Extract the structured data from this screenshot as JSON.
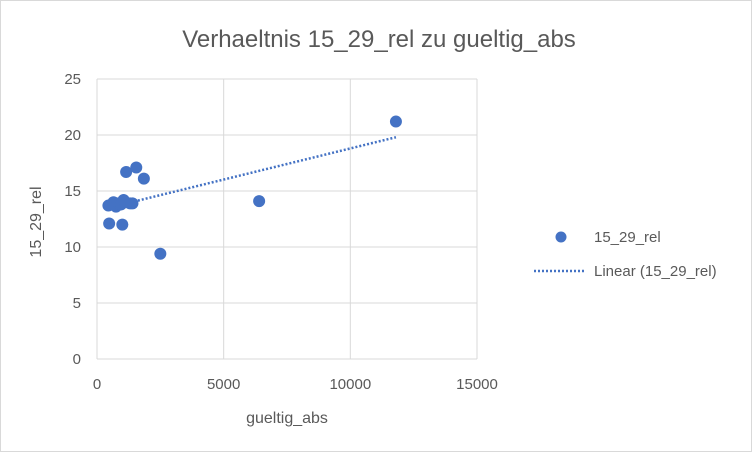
{
  "chart_data": {
    "type": "scatter",
    "title": "Verhaeltnis 15_29_rel zu gueltig_abs",
    "xlabel": "gueltig_abs",
    "ylabel": "15_29_rel",
    "xlim": [
      0,
      15000
    ],
    "ylim": [
      0,
      25
    ],
    "x_ticks": [
      "0",
      "5000",
      "10000",
      "15000"
    ],
    "y_ticks": [
      "0",
      "5",
      "10",
      "15",
      "20",
      "25"
    ],
    "grid": true,
    "legend_position": "right",
    "series": [
      {
        "name": "15_29_rel",
        "color": "#4472c4",
        "points": [
          {
            "x": 450,
            "y": 13.7
          },
          {
            "x": 480,
            "y": 12.1
          },
          {
            "x": 650,
            "y": 14.0
          },
          {
            "x": 750,
            "y": 13.6
          },
          {
            "x": 850,
            "y": 13.9
          },
          {
            "x": 950,
            "y": 13.8
          },
          {
            "x": 1050,
            "y": 14.2
          },
          {
            "x": 1000,
            "y": 12.0
          },
          {
            "x": 1150,
            "y": 16.7
          },
          {
            "x": 1300,
            "y": 13.9
          },
          {
            "x": 1400,
            "y": 13.9
          },
          {
            "x": 1550,
            "y": 17.1
          },
          {
            "x": 1850,
            "y": 16.1
          },
          {
            "x": 2500,
            "y": 9.4
          },
          {
            "x": 6400,
            "y": 14.1
          },
          {
            "x": 11800,
            "y": 21.2
          }
        ]
      }
    ],
    "trendline": {
      "name": "Linear (15_29_rel)",
      "type": "linear",
      "color": "#4472c4",
      "x": [
        1000,
        11800
      ],
      "y": [
        13.8,
        19.8
      ]
    }
  }
}
